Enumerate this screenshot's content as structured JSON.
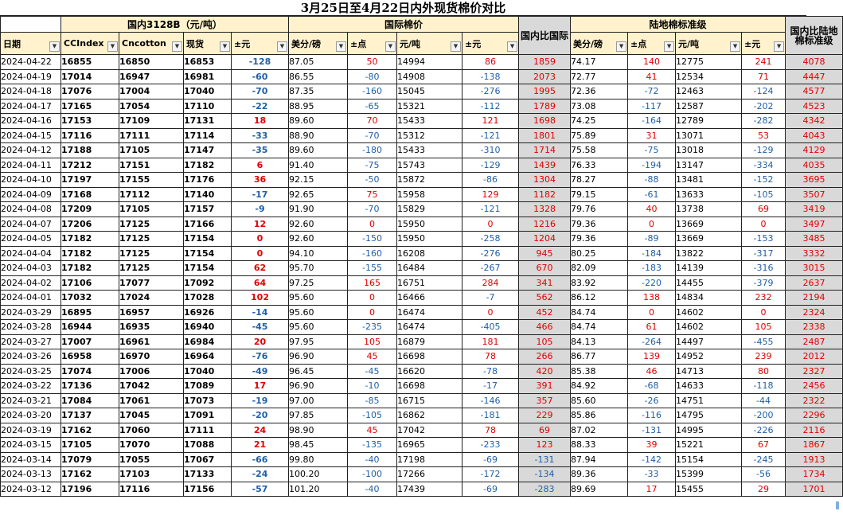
{
  "title": "3月25日至4月22日内外现货棉价对比",
  "group_headers": {
    "domestic": "国内3128B（元/吨）",
    "international": "国际棉价",
    "ratio_intl": "国内比国际",
    "landed": "陆地棉标准级",
    "ratio_landed": "国内比陆地棉标准级"
  },
  "columns": [
    "日期",
    "CCIndex",
    "Cncotton",
    "现货",
    "±元",
    "美分/磅",
    "±点",
    "元/吨",
    "±元",
    "美分/磅",
    "±点",
    "元/吨",
    "±元"
  ],
  "colors": {
    "header_bg": "#fff2cc",
    "ratio_bg": "#d9d9d9",
    "positive": "#e00000",
    "negative": "#1f5fa8"
  },
  "icons": {
    "filter": "dropdown-arrow-icon"
  },
  "rows": [
    [
      "2024-04-22",
      "16855",
      "16850",
      "16853",
      "-128",
      "87.05",
      "50",
      "14994",
      "86",
      "1859",
      "74.17",
      "140",
      "12775",
      "241",
      "4078"
    ],
    [
      "2024-04-19",
      "17014",
      "16947",
      "16981",
      "-60",
      "86.55",
      "-80",
      "14908",
      "-138",
      "2073",
      "72.77",
      "41",
      "12534",
      "71",
      "4447"
    ],
    [
      "2024-04-18",
      "17076",
      "17004",
      "17040",
      "-70",
      "87.35",
      "-160",
      "15045",
      "-276",
      "1995",
      "72.36",
      "-72",
      "12463",
      "-124",
      "4577"
    ],
    [
      "2024-04-17",
      "17165",
      "17054",
      "17110",
      "-22",
      "88.95",
      "-65",
      "15321",
      "-112",
      "1789",
      "73.08",
      "-117",
      "12587",
      "-202",
      "4523"
    ],
    [
      "2024-04-16",
      "17153",
      "17109",
      "17131",
      "18",
      "89.60",
      "70",
      "15433",
      "121",
      "1698",
      "74.25",
      "-164",
      "12789",
      "-282",
      "4342"
    ],
    [
      "2024-04-15",
      "17116",
      "17111",
      "17114",
      "-33",
      "88.90",
      "-70",
      "15312",
      "-121",
      "1801",
      "75.89",
      "31",
      "13071",
      "53",
      "4043"
    ],
    [
      "2024-04-12",
      "17188",
      "17105",
      "17147",
      "-35",
      "89.60",
      "-180",
      "15433",
      "-310",
      "1714",
      "75.58",
      "-75",
      "13018",
      "-129",
      "4129"
    ],
    [
      "2024-04-11",
      "17212",
      "17151",
      "17182",
      "6",
      "91.40",
      "-75",
      "15743",
      "-129",
      "1439",
      "76.33",
      "-194",
      "13147",
      "-334",
      "4035"
    ],
    [
      "2024-04-10",
      "17197",
      "17155",
      "17176",
      "36",
      "92.15",
      "-50",
      "15872",
      "-86",
      "1304",
      "78.27",
      "-88",
      "13481",
      "-152",
      "3695"
    ],
    [
      "2024-04-09",
      "17168",
      "17112",
      "17140",
      "-17",
      "92.65",
      "75",
      "15958",
      "129",
      "1182",
      "79.15",
      "-61",
      "13633",
      "-105",
      "3507"
    ],
    [
      "2024-04-08",
      "17209",
      "17105",
      "17157",
      "-9",
      "91.90",
      "-70",
      "15829",
      "-121",
      "1328",
      "79.76",
      "40",
      "13738",
      "69",
      "3419"
    ],
    [
      "2024-04-07",
      "17206",
      "17125",
      "17166",
      "12",
      "92.60",
      "0",
      "15950",
      "0",
      "1216",
      "79.36",
      "0",
      "13669",
      "0",
      "3497"
    ],
    [
      "2024-04-05",
      "17182",
      "17125",
      "17154",
      "0",
      "92.60",
      "-150",
      "15950",
      "-258",
      "1204",
      "79.36",
      "-89",
      "13669",
      "-153",
      "3485"
    ],
    [
      "2024-04-04",
      "17182",
      "17125",
      "17154",
      "0",
      "94.10",
      "-160",
      "16208",
      "-276",
      "945",
      "80.25",
      "-184",
      "13822",
      "-317",
      "3332"
    ],
    [
      "2024-04-03",
      "17182",
      "17125",
      "17154",
      "62",
      "95.70",
      "-155",
      "16484",
      "-267",
      "670",
      "82.09",
      "-183",
      "14139",
      "-316",
      "3015"
    ],
    [
      "2024-04-02",
      "17106",
      "17077",
      "17092",
      "64",
      "97.25",
      "165",
      "16751",
      "284",
      "341",
      "83.92",
      "-220",
      "14455",
      "-379",
      "2637"
    ],
    [
      "2024-04-01",
      "17032",
      "17024",
      "17028",
      "102",
      "95.60",
      "0",
      "16466",
      "-7",
      "562",
      "86.12",
      "138",
      "14834",
      "232",
      "2194"
    ],
    [
      "2024-03-29",
      "16895",
      "16957",
      "16926",
      "-14",
      "95.60",
      "0",
      "16474",
      "0",
      "452",
      "84.74",
      "0",
      "14602",
      "0",
      "2324"
    ],
    [
      "2024-03-28",
      "16944",
      "16935",
      "16940",
      "-45",
      "95.60",
      "-235",
      "16474",
      "-405",
      "466",
      "84.74",
      "61",
      "14602",
      "105",
      "2338"
    ],
    [
      "2024-03-27",
      "17007",
      "16961",
      "16984",
      "20",
      "97.95",
      "105",
      "16879",
      "181",
      "105",
      "84.13",
      "-264",
      "14497",
      "-455",
      "2487"
    ],
    [
      "2024-03-26",
      "16958",
      "16970",
      "16964",
      "-76",
      "96.90",
      "45",
      "16698",
      "78",
      "266",
      "86.77",
      "139",
      "14952",
      "239",
      "2012"
    ],
    [
      "2024-03-25",
      "17074",
      "17006",
      "17040",
      "-49",
      "96.45",
      "-45",
      "16620",
      "-78",
      "420",
      "85.38",
      "46",
      "14713",
      "80",
      "2327"
    ],
    [
      "2024-03-22",
      "17136",
      "17042",
      "17089",
      "17",
      "96.90",
      "-10",
      "16698",
      "-17",
      "391",
      "84.92",
      "-68",
      "14633",
      "-118",
      "2456"
    ],
    [
      "2024-03-21",
      "17084",
      "17061",
      "17073",
      "-19",
      "97.00",
      "-85",
      "16715",
      "-146",
      "357",
      "85.60",
      "-26",
      "14751",
      "-44",
      "2322"
    ],
    [
      "2024-03-20",
      "17137",
      "17045",
      "17091",
      "-20",
      "97.85",
      "-105",
      "16862",
      "-181",
      "229",
      "85.86",
      "-116",
      "14795",
      "-200",
      "2296"
    ],
    [
      "2024-03-19",
      "17162",
      "17060",
      "17111",
      "24",
      "98.90",
      "45",
      "17042",
      "78",
      "69",
      "87.02",
      "-131",
      "14995",
      "-226",
      "2116"
    ],
    [
      "2024-03-15",
      "17105",
      "17070",
      "17088",
      "21",
      "98.45",
      "-135",
      "16965",
      "-233",
      "123",
      "88.33",
      "39",
      "15221",
      "67",
      "1867"
    ],
    [
      "2024-03-14",
      "17079",
      "17055",
      "17067",
      "-66",
      "99.80",
      "-40",
      "17198",
      "-69",
      "-131",
      "87.94",
      "-142",
      "15154",
      "-245",
      "1913"
    ],
    [
      "2024-03-13",
      "17162",
      "17103",
      "17133",
      "-24",
      "100.20",
      "-100",
      "17266",
      "-172",
      "-134",
      "89.36",
      "-33",
      "15399",
      "-56",
      "1734"
    ],
    [
      "2024-03-12",
      "17196",
      "17116",
      "17156",
      "-57",
      "101.20",
      "-40",
      "17439",
      "-69",
      "-283",
      "89.69",
      "17",
      "15455",
      "29",
      "1701"
    ]
  ]
}
